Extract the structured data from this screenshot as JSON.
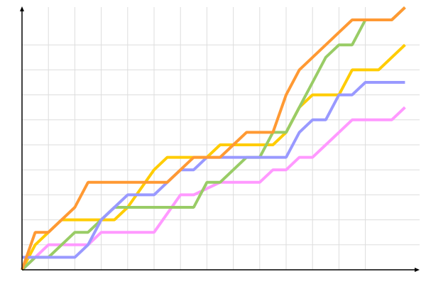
{
  "chart_data": {
    "type": "line",
    "title": "",
    "xlabel": "",
    "ylabel": "",
    "xlim": [
      0,
      15
    ],
    "ylim": [
      0,
      10.5
    ],
    "grid": true,
    "grid_color": "#dddddd",
    "axis_color": "#000000",
    "series": [
      {
        "color": "#ff99ff",
        "points": [
          [
            0,
            0
          ],
          [
            0.5,
            0.5
          ],
          [
            1,
            1
          ],
          [
            2.5,
            1
          ],
          [
            3,
            1.5
          ],
          [
            5,
            1.5
          ],
          [
            5.5,
            2.25
          ],
          [
            6,
            3
          ],
          [
            6.5,
            3
          ],
          [
            7,
            3.25
          ],
          [
            7.5,
            3.5
          ],
          [
            9,
            3.5
          ],
          [
            9.5,
            4
          ],
          [
            10,
            4
          ],
          [
            10.5,
            4.5
          ],
          [
            11,
            4.5
          ],
          [
            11.5,
            5
          ],
          [
            12,
            5.5
          ],
          [
            12.5,
            6
          ],
          [
            14,
            6
          ],
          [
            14.5,
            6.5
          ]
        ]
      },
      {
        "color": "#ffcc00",
        "points": [
          [
            0,
            0
          ],
          [
            0.5,
            1
          ],
          [
            1,
            1.5
          ],
          [
            1.5,
            2
          ],
          [
            3,
            2
          ],
          [
            3.5,
            2
          ],
          [
            4,
            2.5
          ],
          [
            4.5,
            3.25
          ],
          [
            5,
            4
          ],
          [
            5.5,
            4.5
          ],
          [
            7,
            4.5
          ],
          [
            7.5,
            5
          ],
          [
            9.5,
            5
          ],
          [
            10,
            5.5
          ],
          [
            10.5,
            6.5
          ],
          [
            11,
            7
          ],
          [
            12,
            7
          ],
          [
            12.5,
            8
          ],
          [
            13.5,
            8
          ],
          [
            14,
            8.5
          ],
          [
            14.5,
            9
          ]
        ]
      },
      {
        "color": "#99cc66",
        "points": [
          [
            0,
            0
          ],
          [
            0.5,
            0.5
          ],
          [
            1,
            0.5
          ],
          [
            1.5,
            1
          ],
          [
            2,
            1.5
          ],
          [
            2.5,
            1.5
          ],
          [
            3,
            2
          ],
          [
            3.5,
            2.5
          ],
          [
            6.5,
            2.5
          ],
          [
            7,
            3.5
          ],
          [
            7.5,
            3.5
          ],
          [
            8,
            4
          ],
          [
            8.5,
            4.5
          ],
          [
            9,
            4.5
          ],
          [
            9.5,
            5.5
          ],
          [
            10,
            5.5
          ],
          [
            10.5,
            6.5
          ],
          [
            11,
            7.5
          ],
          [
            11.5,
            8.5
          ],
          [
            12,
            9
          ],
          [
            12.5,
            9
          ],
          [
            13,
            10
          ],
          [
            14,
            10
          ],
          [
            14.5,
            10.5
          ]
        ]
      },
      {
        "color": "#9999ff",
        "points": [
          [
            0,
            0.5
          ],
          [
            2,
            0.5
          ],
          [
            2.5,
            1
          ],
          [
            3,
            2
          ],
          [
            3.5,
            2.5
          ],
          [
            4,
            3
          ],
          [
            5,
            3
          ],
          [
            5.5,
            3.5
          ],
          [
            6,
            4
          ],
          [
            6.5,
            4
          ],
          [
            7,
            4.5
          ],
          [
            10,
            4.5
          ],
          [
            10.5,
            5.5
          ],
          [
            11,
            6
          ],
          [
            11.5,
            6
          ],
          [
            12,
            7
          ],
          [
            12.5,
            7
          ],
          [
            13,
            7.5
          ],
          [
            14.5,
            7.5
          ]
        ]
      },
      {
        "color": "#ff9933",
        "points": [
          [
            0,
            0
          ],
          [
            0.5,
            1.5
          ],
          [
            1,
            1.5
          ],
          [
            1.5,
            2
          ],
          [
            2,
            2.5
          ],
          [
            2.5,
            3.5
          ],
          [
            5.5,
            3.5
          ],
          [
            6,
            4
          ],
          [
            6.5,
            4.5
          ],
          [
            7.5,
            4.5
          ],
          [
            8,
            5
          ],
          [
            8.5,
            5.5
          ],
          [
            9.5,
            5.5
          ],
          [
            10,
            7
          ],
          [
            10.5,
            8
          ],
          [
            11,
            8.5
          ],
          [
            11.5,
            9
          ],
          [
            12,
            9.5
          ],
          [
            12.5,
            10
          ],
          [
            14,
            10
          ],
          [
            14.5,
            10.5
          ]
        ]
      }
    ]
  }
}
